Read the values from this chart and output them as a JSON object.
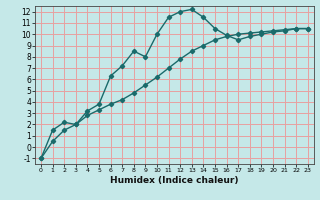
{
  "xlabel": "Humidex (Indice chaleur)",
  "ylabel": "",
  "background_color": "#c5e8e8",
  "grid_color": "#e8a0a0",
  "line_color": "#1a6b6b",
  "xlim": [
    -0.5,
    23.5
  ],
  "ylim": [
    -1.5,
    12.5
  ],
  "line1_x": [
    0,
    1,
    2,
    3,
    4,
    5,
    6,
    7,
    8,
    9,
    10,
    11,
    12,
    13,
    14,
    15,
    16,
    17,
    18,
    19,
    20,
    21,
    22,
    23
  ],
  "line1_y": [
    -1.0,
    1.5,
    2.2,
    2.0,
    3.2,
    3.8,
    6.3,
    7.2,
    8.5,
    8.0,
    10.0,
    11.5,
    12.0,
    12.2,
    11.5,
    10.5,
    9.9,
    9.5,
    9.8,
    10.0,
    10.2,
    10.3,
    10.5,
    10.5
  ],
  "line2_x": [
    0,
    1,
    2,
    3,
    4,
    5,
    6,
    7,
    8,
    9,
    10,
    11,
    12,
    13,
    14,
    15,
    16,
    17,
    18,
    19,
    20,
    21,
    22,
    23
  ],
  "line2_y": [
    -1.0,
    0.5,
    1.5,
    2.0,
    2.8,
    3.3,
    3.8,
    4.2,
    4.8,
    5.5,
    6.2,
    7.0,
    7.8,
    8.5,
    9.0,
    9.5,
    9.8,
    10.0,
    10.1,
    10.2,
    10.3,
    10.4,
    10.5,
    10.5
  ],
  "yticks": [
    -1,
    0,
    1,
    2,
    3,
    4,
    5,
    6,
    7,
    8,
    9,
    10,
    11,
    12
  ],
  "xticks": [
    0,
    1,
    2,
    3,
    4,
    5,
    6,
    7,
    8,
    9,
    10,
    11,
    12,
    13,
    14,
    15,
    16,
    17,
    18,
    19,
    20,
    21,
    22,
    23
  ]
}
